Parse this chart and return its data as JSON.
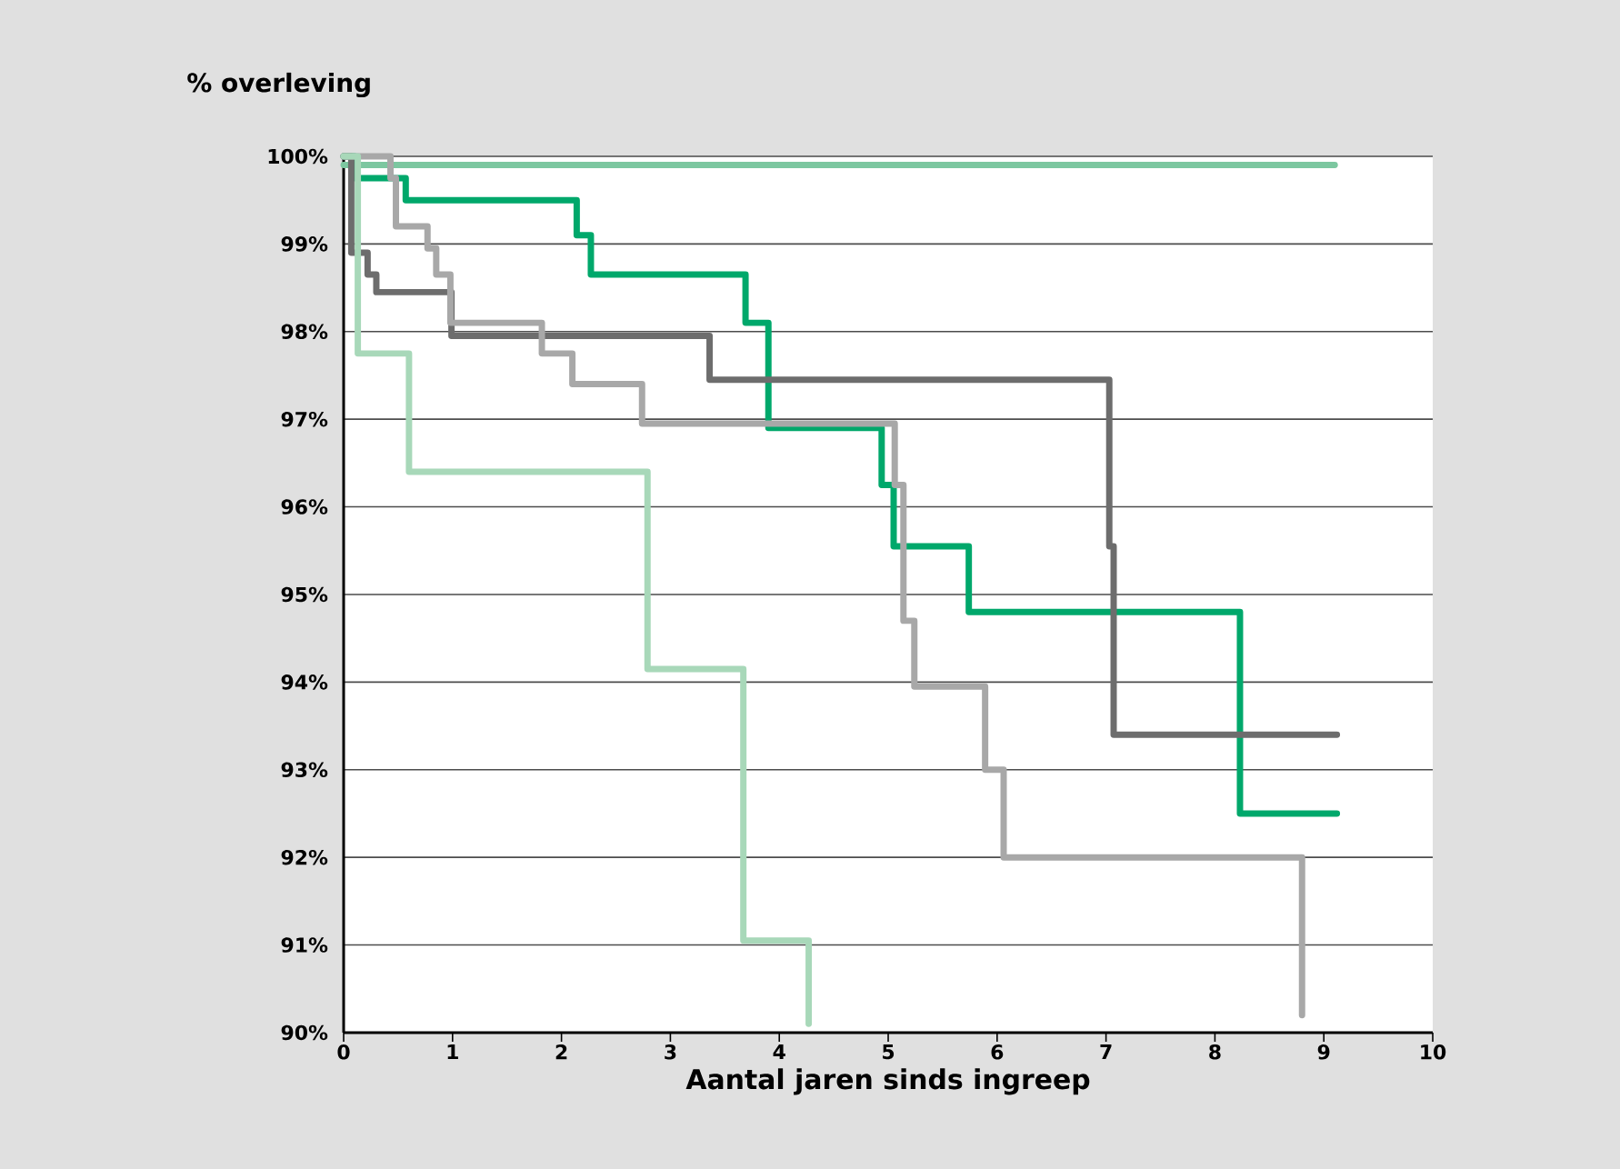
{
  "chart_data": {
    "type": "step",
    "ylabel": "% overleving",
    "xlabel": "Aantal jaren sinds ingreep",
    "xlim": [
      0,
      10
    ],
    "xticks": [
      0,
      1,
      2,
      3,
      4,
      5,
      6,
      7,
      8,
      9,
      10
    ],
    "ylim": [
      90,
      100
    ],
    "yticks": [
      {
        "value": 90,
        "label": "90%"
      },
      {
        "value": 91,
        "label": "91%"
      },
      {
        "value": 92,
        "label": "92%"
      },
      {
        "value": 93,
        "label": "93%"
      },
      {
        "value": 94,
        "label": "94%"
      },
      {
        "value": 95,
        "label": "95%"
      },
      {
        "value": 96,
        "label": "96%"
      },
      {
        "value": 97,
        "label": "97%"
      },
      {
        "value": 98,
        "label": "98%"
      },
      {
        "value": 99,
        "label": "99%"
      },
      {
        "value": 100,
        "label": "100%"
      }
    ],
    "grid": "y",
    "marker": "none",
    "line_style": "solid",
    "series": [
      {
        "color": "#7cc7a0",
        "x": [
          0,
          9.1
        ],
        "values": [
          99.9,
          99.9
        ]
      },
      {
        "color": "#00a86b",
        "x": [
          0,
          0.1,
          0.57,
          2.14,
          2.27,
          3.69,
          3.9,
          4.94,
          5.05,
          5.74,
          8.23,
          9.12
        ],
        "values": [
          100,
          99.75,
          99.5,
          99.1,
          98.65,
          98.1,
          96.9,
          96.25,
          95.55,
          94.8,
          92.5,
          92.5
        ]
      },
      {
        "color": "#6d6d6d",
        "x": [
          0,
          0.07,
          0.22,
          0.3,
          0.99,
          3.36,
          7.03,
          7.07,
          9.12
        ],
        "values": [
          100,
          98.9,
          98.65,
          98.45,
          97.95,
          97.45,
          95.55,
          93.4,
          93.4
        ]
      },
      {
        "color": "#a8a8a8",
        "x": [
          0,
          0.43,
          0.48,
          0.77,
          0.85,
          0.98,
          1.82,
          2.1,
          2.74,
          5.06,
          5.14,
          5.24,
          5.89,
          6.06,
          8.8
        ],
        "values": [
          100,
          99.75,
          99.2,
          98.95,
          98.65,
          98.1,
          97.75,
          97.4,
          96.95,
          96.25,
          94.7,
          93.95,
          93.0,
          92.0,
          90.2
        ]
      },
      {
        "color": "#a8d8b9",
        "x": [
          0,
          0.13,
          0.6,
          2.79,
          3.67,
          4.27
        ],
        "values": [
          100,
          97.75,
          96.4,
          94.15,
          91.05,
          90.1
        ]
      }
    ]
  }
}
